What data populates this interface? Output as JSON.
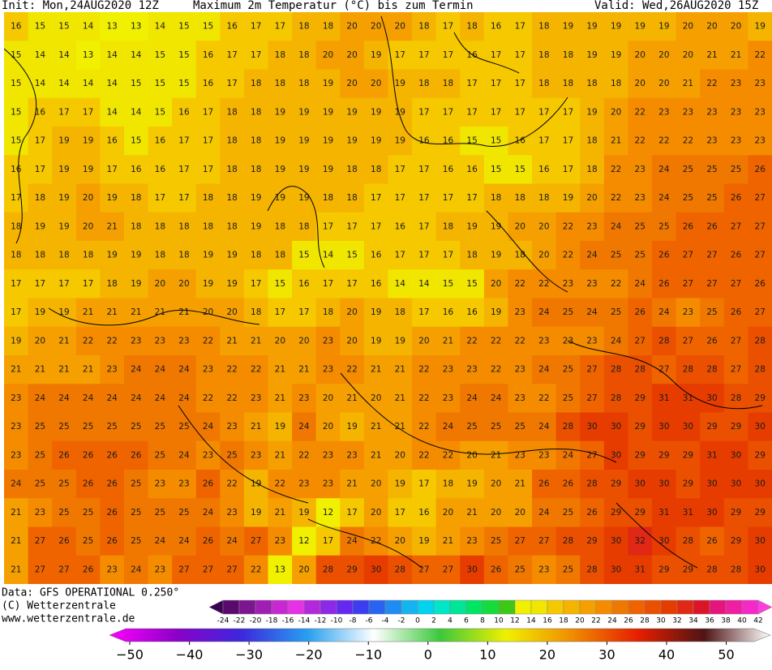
{
  "header": {
    "init": "Init: Mon,24AUG2020 12Z",
    "title": "Maximum 2m Temperatur (°C) bis zum Termin",
    "valid": "Valid: Wed,26AUG2020 15Z"
  },
  "map": {
    "type": "grid",
    "rows": [
      [
        16,
        15,
        15,
        14,
        13,
        13,
        14,
        15,
        15,
        16,
        17,
        17,
        18,
        18,
        20,
        20,
        20,
        18,
        17,
        18,
        16,
        17,
        18,
        19,
        19,
        19,
        19,
        19,
        20,
        20,
        20,
        19
      ],
      [
        15,
        14,
        14,
        13,
        14,
        14,
        15,
        15,
        16,
        17,
        17,
        18,
        18,
        20,
        20,
        19,
        17,
        17,
        17,
        16,
        17,
        17,
        18,
        18,
        19,
        19,
        20,
        20,
        20,
        21,
        21,
        22
      ],
      [
        15,
        14,
        14,
        14,
        14,
        15,
        15,
        15,
        16,
        17,
        18,
        18,
        18,
        19,
        20,
        20,
        19,
        18,
        18,
        17,
        17,
        17,
        18,
        18,
        18,
        18,
        20,
        20,
        21,
        22,
        23,
        23
      ],
      [
        15,
        16,
        17,
        17,
        14,
        14,
        15,
        16,
        17,
        18,
        18,
        19,
        19,
        19,
        19,
        19,
        19,
        17,
        17,
        17,
        17,
        17,
        17,
        17,
        19,
        20,
        22,
        23,
        23,
        23,
        23,
        23
      ],
      [
        15,
        17,
        19,
        19,
        16,
        15,
        16,
        17,
        17,
        18,
        18,
        19,
        19,
        19,
        19,
        19,
        19,
        16,
        16,
        15,
        15,
        16,
        17,
        17,
        18,
        21,
        22,
        22,
        22,
        23,
        23,
        23
      ],
      [
        16,
        17,
        19,
        19,
        17,
        16,
        16,
        17,
        17,
        18,
        18,
        19,
        19,
        19,
        18,
        18,
        17,
        17,
        16,
        16,
        15,
        15,
        16,
        17,
        18,
        22,
        23,
        24,
        25,
        25,
        25,
        26
      ],
      [
        17,
        18,
        19,
        20,
        19,
        18,
        17,
        17,
        18,
        18,
        19,
        19,
        19,
        18,
        18,
        17,
        17,
        17,
        17,
        17,
        18,
        18,
        18,
        19,
        20,
        22,
        23,
        24,
        25,
        25,
        26,
        27
      ],
      [
        18,
        19,
        19,
        20,
        21,
        18,
        18,
        18,
        18,
        18,
        19,
        18,
        18,
        17,
        17,
        17,
        16,
        17,
        18,
        19,
        19,
        20,
        20,
        22,
        23,
        24,
        25,
        25,
        26,
        26,
        27,
        27
      ],
      [
        18,
        18,
        18,
        18,
        19,
        19,
        18,
        18,
        19,
        19,
        18,
        18,
        15,
        14,
        15,
        16,
        17,
        17,
        17,
        18,
        19,
        18,
        20,
        22,
        24,
        25,
        25,
        26,
        27,
        27,
        26,
        27
      ],
      [
        17,
        17,
        17,
        17,
        18,
        19,
        20,
        20,
        19,
        19,
        17,
        15,
        16,
        17,
        17,
        16,
        14,
        14,
        15,
        15,
        20,
        22,
        22,
        23,
        23,
        22,
        24,
        26,
        27,
        27,
        27,
        26
      ],
      [
        17,
        19,
        19,
        21,
        21,
        21,
        21,
        21,
        20,
        20,
        18,
        17,
        17,
        18,
        20,
        19,
        18,
        17,
        16,
        16,
        19,
        23,
        24,
        25,
        24,
        25,
        26,
        24,
        23,
        25,
        26,
        27
      ],
      [
        19,
        20,
        21,
        22,
        22,
        23,
        23,
        23,
        22,
        21,
        21,
        20,
        20,
        23,
        20,
        19,
        19,
        20,
        21,
        22,
        22,
        22,
        23,
        23,
        23,
        24,
        27,
        28,
        27,
        26,
        27,
        28
      ],
      [
        21,
        21,
        21,
        21,
        23,
        24,
        24,
        24,
        23,
        22,
        22,
        21,
        21,
        23,
        22,
        21,
        21,
        22,
        23,
        23,
        22,
        23,
        24,
        25,
        27,
        28,
        28,
        27,
        28,
        28,
        27,
        28
      ],
      [
        23,
        24,
        24,
        24,
        24,
        24,
        24,
        24,
        22,
        22,
        23,
        21,
        23,
        20,
        21,
        20,
        21,
        22,
        23,
        24,
        24,
        23,
        22,
        25,
        27,
        28,
        29,
        31,
        31,
        30,
        28,
        29
      ],
      [
        23,
        25,
        25,
        25,
        25,
        25,
        25,
        25,
        24,
        23,
        21,
        19,
        24,
        20,
        19,
        21,
        21,
        22,
        24,
        25,
        25,
        25,
        24,
        28,
        30,
        30,
        29,
        30,
        30,
        29,
        29,
        30
      ],
      [
        23,
        25,
        26,
        26,
        26,
        26,
        25,
        24,
        23,
        25,
        23,
        21,
        22,
        23,
        23,
        21,
        20,
        22,
        22,
        20,
        21,
        23,
        23,
        24,
        27,
        30,
        29,
        29,
        29,
        31,
        30,
        29
      ],
      [
        24,
        25,
        25,
        26,
        26,
        25,
        23,
        23,
        26,
        22,
        19,
        22,
        23,
        23,
        21,
        20,
        19,
        17,
        18,
        19,
        20,
        21,
        26,
        26,
        28,
        29,
        30,
        30,
        29,
        30,
        30,
        30
      ],
      [
        21,
        23,
        25,
        25,
        26,
        25,
        25,
        25,
        24,
        23,
        19,
        21,
        19,
        12,
        17,
        20,
        17,
        16,
        20,
        21,
        20,
        20,
        24,
        25,
        26,
        29,
        29,
        31,
        31,
        30,
        29,
        29
      ],
      [
        21,
        27,
        26,
        25,
        26,
        25,
        24,
        24,
        26,
        24,
        27,
        23,
        12,
        17,
        24,
        22,
        20,
        19,
        21,
        23,
        25,
        27,
        27,
        28,
        29,
        30,
        32,
        30,
        28,
        26,
        29,
        30
      ],
      [
        21,
        27,
        27,
        26,
        23,
        24,
        23,
        27,
        27,
        27,
        22,
        13,
        20,
        28,
        29,
        30,
        28,
        27,
        27,
        30,
        26,
        25,
        23,
        25,
        28,
        30,
        31,
        29,
        29,
        28,
        28,
        30
      ]
    ]
  },
  "footer": {
    "data": "Data: GFS OPERATIONAL 0.250°",
    "copyright": "(C) Wetterzentrale",
    "url": "www.wetterzentrale.de"
  },
  "legend_bins": {
    "ticks": [
      -24,
      -22,
      -20,
      -18,
      -16,
      -14,
      -12,
      -10,
      -8,
      -6,
      -4,
      -2,
      0,
      2,
      4,
      6,
      8,
      10,
      12,
      14,
      16,
      18,
      20,
      22,
      24,
      26,
      28,
      30,
      32,
      34,
      36,
      38,
      40,
      42
    ],
    "colors": [
      "#3c0050",
      "#5a0a6e",
      "#7d1490",
      "#a01eb4",
      "#c828d2",
      "#e632e6",
      "#b428dc",
      "#8c28e6",
      "#6428f0",
      "#3c3cf0",
      "#2864f0",
      "#1e8cf0",
      "#14b4f0",
      "#00d2f0",
      "#00e6c8",
      "#00e696",
      "#00e664",
      "#14dc3c",
      "#3cc814",
      "#f0f000",
      "#f0e600",
      "#f5c800",
      "#f5b400",
      "#f5a000",
      "#f58c00",
      "#f07800",
      "#f06400",
      "#eb5000",
      "#e63c00",
      "#e12814",
      "#dc1428",
      "#e6147d",
      "#f01ea0",
      "#f528c8",
      "#ff3cdc"
    ]
  },
  "legend_gradient": {
    "xlim": [
      -53.4,
      57.4
    ],
    "xticks": [
      {
        "value": -50,
        "label": "−50"
      },
      {
        "value": -40,
        "label": "−40"
      },
      {
        "value": -30,
        "label": "−30"
      },
      {
        "value": -20,
        "label": "−20"
      },
      {
        "value": -10,
        "label": "−10"
      },
      0,
      10,
      20,
      30,
      40,
      50
    ],
    "stops": [
      "#ff00ff",
      "#8c00c8",
      "#3c28dc",
      "#28a0f0",
      "#ffffff",
      "#3cc83c",
      "#f0f000",
      "#f08c00",
      "#e61e00",
      "#501414",
      "#ffffff"
    ]
  }
}
